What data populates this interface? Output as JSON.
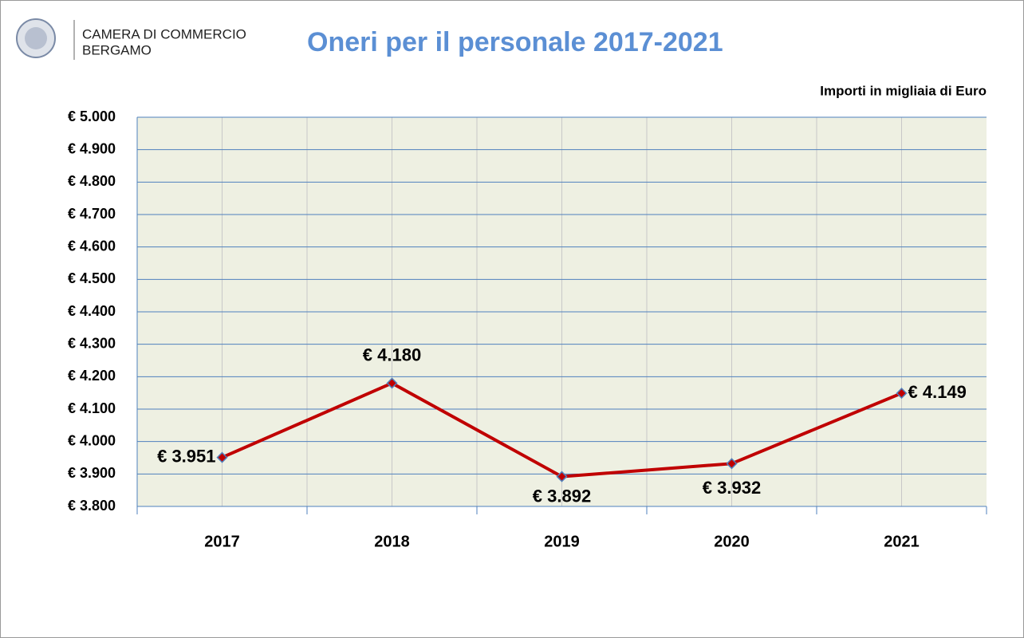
{
  "header": {
    "logo_line1": "CAMERA DI COMMERCIO",
    "logo_line2": "BERGAMO"
  },
  "chart_data": {
    "type": "line",
    "title": "Oneri per il personale 2017-2021",
    "subtitle": "Importi in migliaia di Euro",
    "categories": [
      "2017",
      "2018",
      "2019",
      "2020",
      "2021"
    ],
    "series": [
      {
        "name": "Oneri per il personale",
        "color": "#c00000",
        "values": [
          3951,
          4180,
          3892,
          3932,
          4149
        ],
        "value_labels": [
          "€ 3.951",
          "€ 4.180",
          "€ 3.892",
          "€ 3.932",
          "€ 4.149"
        ]
      }
    ],
    "ylim": [
      3800,
      5000
    ],
    "yticks": [
      {
        "value": 3800,
        "label": "€ 3.800"
      },
      {
        "value": 3900,
        "label": "€ 3.900"
      },
      {
        "value": 4000,
        "label": "€ 4.000"
      },
      {
        "value": 4100,
        "label": "€ 4.100"
      },
      {
        "value": 4200,
        "label": "€ 4.200"
      },
      {
        "value": 4300,
        "label": "€ 4.300"
      },
      {
        "value": 4400,
        "label": "€ 4.400"
      },
      {
        "value": 4500,
        "label": "€ 4.500"
      },
      {
        "value": 4600,
        "label": "€ 4.600"
      },
      {
        "value": 4700,
        "label": "€ 4.700"
      },
      {
        "value": 4800,
        "label": "€ 4.800"
      },
      {
        "value": 4900,
        "label": "€ 4.900"
      },
      {
        "value": 5000,
        "label": "€ 5.000"
      }
    ],
    "grid": true
  }
}
